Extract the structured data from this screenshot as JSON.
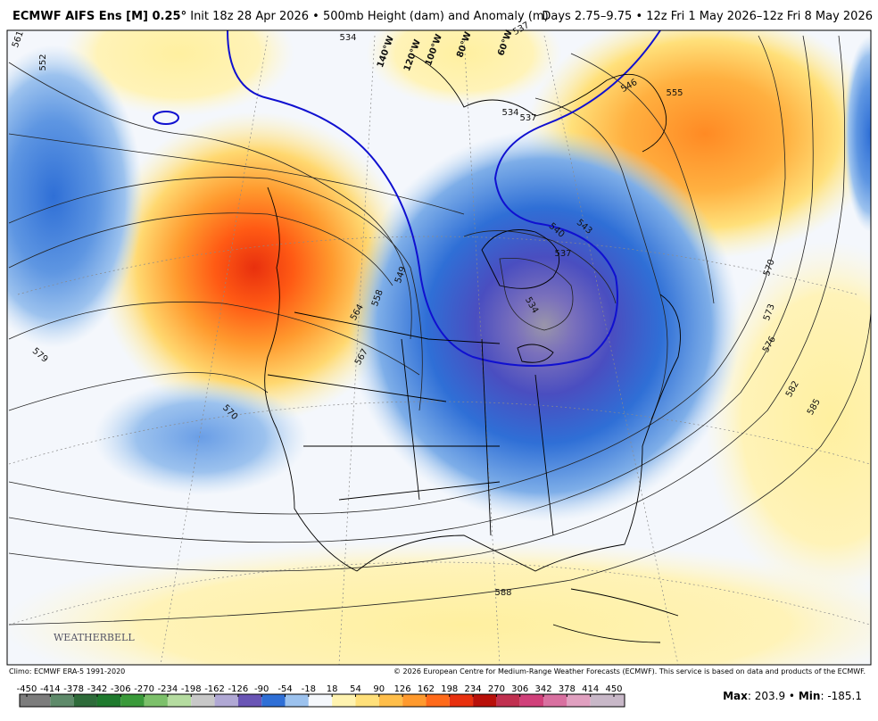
{
  "header": {
    "title": "ECMWF AIFS Ens [M] 0.25°",
    "init": "Init 18z 28 Apr 2026 • 500mb Height (dam) and Anomaly (m)",
    "valid": "Days 2.75–9.75 • 12z Fri 1 May 2026–12z Fri 8 May 2026"
  },
  "map": {
    "watermark": "WEATHERBELL",
    "longitude_labels": [
      "140°W",
      "120°W",
      "100°W",
      "80°W",
      "60°W"
    ],
    "contour_labels": [
      "552",
      "561",
      "534",
      "537",
      "546",
      "555",
      "534",
      "537",
      "540",
      "543",
      "537",
      "534",
      "549",
      "558",
      "564",
      "567",
      "579",
      "570",
      "570",
      "573",
      "576",
      "582",
      "585",
      "588"
    ]
  },
  "footer": {
    "climo": "Climo: ECMWF ERA-5 1991-2020",
    "copyright": "© 2026 European Centre for Medium-Range Weather Forecasts (ECMWF). This service is based on data and products of the ECMWF.",
    "max_label": "Max",
    "max": 203.9,
    "separator": "•",
    "min_label": "Min",
    "min": -185.1,
    "colon": ":"
  },
  "colorbar": {
    "ticks": [
      -450,
      -414,
      -378,
      -342,
      -306,
      -270,
      -234,
      -198,
      -162,
      -126,
      -90,
      -54,
      -18,
      18,
      54,
      90,
      126,
      162,
      198,
      234,
      270,
      306,
      342,
      378,
      414,
      450
    ],
    "colors": [
      "#7c7c7c",
      "#5e8a6a",
      "#2e6b3a",
      "#1f7a2e",
      "#3a9a3a",
      "#7cc06a",
      "#b5dca0",
      "#c8c8c8",
      "#b0a8d4",
      "#6a55b5",
      "#2f6fd6",
      "#9cc2ee",
      "#f5f8fc",
      "#fff3b0",
      "#ffe07a",
      "#ffbe4a",
      "#ff9a2e",
      "#ff6a1a",
      "#e8300e",
      "#b8100a",
      "#c03050",
      "#d0407a",
      "#d870a0",
      "#e0a0c0",
      "#c8b8c8"
    ]
  }
}
